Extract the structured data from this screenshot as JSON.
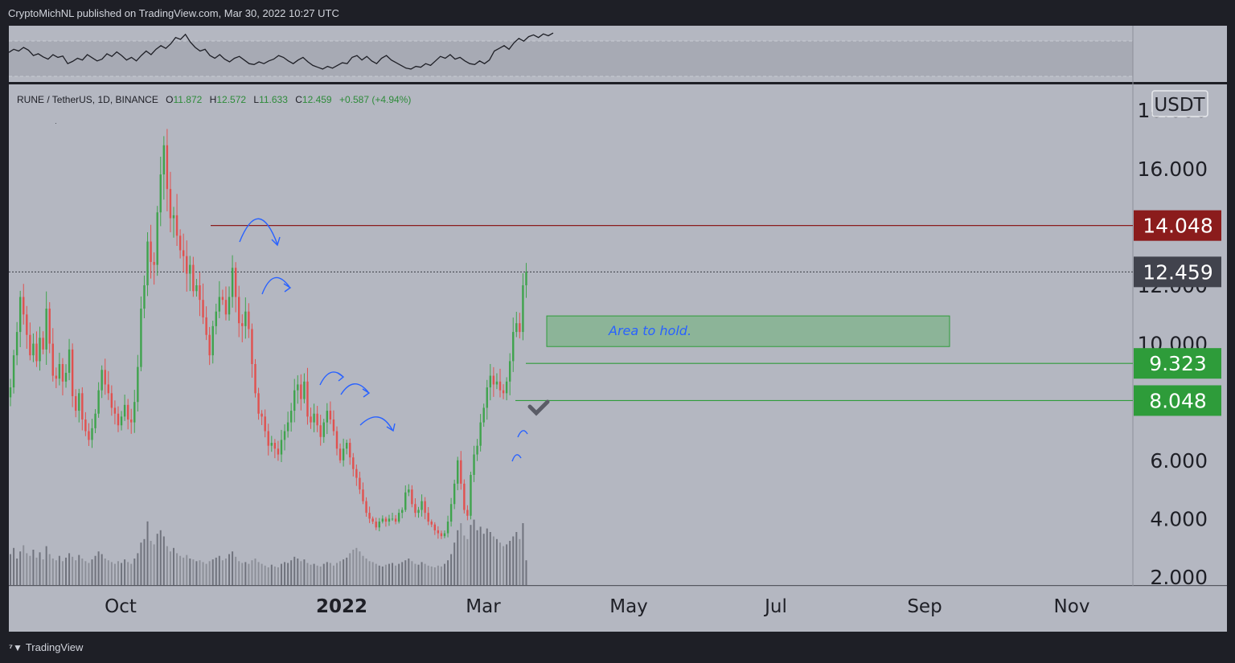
{
  "header": {
    "publisher": "CryptoMichNL published on TradingView.com, Mar 30, 2022 10:27 UTC"
  },
  "footer": {
    "brand": "TradingView"
  },
  "legend": {
    "symbol": "RUNE / TetherUS, 1D, BINANCE",
    "o_label": "O",
    "o": "11.872",
    "h_label": "H",
    "h": "12.572",
    "l_label": "L",
    "l": "11.633",
    "c_label": "C",
    "c": "12.459",
    "change": "+0.587 (+4.94%)"
  },
  "colors": {
    "up": "#3fa34d",
    "down": "#e0514f",
    "resistance": "#8b1c1c",
    "support": "#2e9c3a",
    "last": "#41434d",
    "zone": "#7fb38a",
    "annotation": "#2962ff"
  },
  "annotation_text": "Area to hold.",
  "currency": "USDT",
  "chart_data": {
    "type": "candlestick",
    "symbol": "RUNE / TetherUS",
    "interval": "1D",
    "exchange": "BINANCE",
    "ylim": [
      1.5,
      17.8
    ],
    "y_ticks": [
      {
        "value": 2,
        "label": "2.000"
      },
      {
        "value": 4,
        "label": "4.000"
      },
      {
        "value": 6,
        "label": "6.000"
      },
      {
        "value": 10,
        "label": "10.000"
      },
      {
        "value": 12,
        "label": "12.000"
      },
      {
        "value": 16,
        "label": "16.000"
      },
      {
        "value": 18,
        "label": "18.000"
      }
    ],
    "x_ticks": [
      {
        "label": "Oct",
        "bold": false
      },
      {
        "label": "2022",
        "bold": true
      },
      {
        "label": "Mar",
        "bold": false
      },
      {
        "label": "May",
        "bold": false
      },
      {
        "label": "Jul",
        "bold": false
      },
      {
        "label": "Sep",
        "bold": false
      },
      {
        "label": "Nov",
        "bold": false
      }
    ],
    "price_levels": [
      {
        "value": 14.048,
        "label": "14.048",
        "kind": "resistance"
      },
      {
        "value": 12.459,
        "label": "12.459",
        "kind": "last"
      },
      {
        "value": 9.323,
        "label": "9.323",
        "kind": "support"
      },
      {
        "value": 8.048,
        "label": "8.048",
        "kind": "support"
      }
    ],
    "zone": {
      "low": 9.9,
      "high": 10.95,
      "label": "Area to hold."
    },
    "closes": [
      8.5,
      9.6,
      10.4,
      11.6,
      11.0,
      10.3,
      9.6,
      10.0,
      9.4,
      10.2,
      9.8,
      11.2,
      10.0,
      8.9,
      8.8,
      9.3,
      8.7,
      9.0,
      9.8,
      8.2,
      7.7,
      8.3,
      7.4,
      7.0,
      6.7,
      7.1,
      7.6,
      8.4,
      9.1,
      8.6,
      8.3,
      7.8,
      7.6,
      7.2,
      7.5,
      7.9,
      7.4,
      7.3,
      8.0,
      9.2,
      11.2,
      12.0,
      13.5,
      12.8,
      12.7,
      14.5,
      15.8,
      16.8,
      15.3,
      14.3,
      14.4,
      13.7,
      13.2,
      13.0,
      12.4,
      12.7,
      11.8,
      12.0,
      11.5,
      10.9,
      10.3,
      9.6,
      10.6,
      11.1,
      11.6,
      11.5,
      11.0,
      11.6,
      12.6,
      11.6,
      10.7,
      10.6,
      11.1,
      10.5,
      9.3,
      8.3,
      7.6,
      7.5,
      7.0,
      6.5,
      6.6,
      6.4,
      6.2,
      6.7,
      7.0,
      7.3,
      7.7,
      8.4,
      8.6,
      8.1,
      8.7,
      7.5,
      7.3,
      7.6,
      7.2,
      6.8,
      7.3,
      7.7,
      7.4,
      7.0,
      6.4,
      6.0,
      6.4,
      6.6,
      6.1,
      5.7,
      5.4,
      5.0,
      4.6,
      4.2,
      4.0,
      3.9,
      3.7,
      3.9,
      4.0,
      3.9,
      4.0,
      4.0,
      3.9,
      4.2,
      4.3,
      4.9,
      5.0,
      4.5,
      4.2,
      4.3,
      4.6,
      4.2,
      3.9,
      3.8,
      3.6,
      3.5,
      3.4,
      3.5,
      3.9,
      4.5,
      5.2,
      6.0,
      5.2,
      4.3,
      4.1,
      5.5,
      6.2,
      6.5,
      7.3,
      7.8,
      8.5,
      8.9,
      8.6,
      8.7,
      8.4,
      8.3,
      8.7,
      9.4,
      10.4,
      10.7,
      10.4,
      12.0,
      12.459
    ],
    "volume_scale": "relative 0-1",
    "volume": [
      0.35,
      0.42,
      0.3,
      0.38,
      0.45,
      0.36,
      0.33,
      0.4,
      0.31,
      0.37,
      0.29,
      0.44,
      0.35,
      0.3,
      0.28,
      0.33,
      0.27,
      0.31,
      0.36,
      0.32,
      0.28,
      0.34,
      0.3,
      0.27,
      0.25,
      0.29,
      0.33,
      0.38,
      0.35,
      0.3,
      0.28,
      0.26,
      0.24,
      0.27,
      0.25,
      0.29,
      0.26,
      0.24,
      0.3,
      0.36,
      0.48,
      0.52,
      0.72,
      0.5,
      0.46,
      0.58,
      0.62,
      0.55,
      0.44,
      0.38,
      0.42,
      0.36,
      0.33,
      0.31,
      0.34,
      0.3,
      0.29,
      0.27,
      0.28,
      0.26,
      0.24,
      0.27,
      0.29,
      0.31,
      0.33,
      0.28,
      0.3,
      0.35,
      0.38,
      0.32,
      0.27,
      0.25,
      0.26,
      0.24,
      0.28,
      0.3,
      0.26,
      0.24,
      0.22,
      0.2,
      0.23,
      0.21,
      0.2,
      0.24,
      0.26,
      0.25,
      0.28,
      0.32,
      0.3,
      0.27,
      0.29,
      0.25,
      0.23,
      0.24,
      0.22,
      0.21,
      0.24,
      0.26,
      0.25,
      0.22,
      0.25,
      0.27,
      0.29,
      0.31,
      0.36,
      0.4,
      0.42,
      0.38,
      0.33,
      0.3,
      0.27,
      0.26,
      0.24,
      0.22,
      0.21,
      0.23,
      0.24,
      0.25,
      0.22,
      0.24,
      0.26,
      0.28,
      0.3,
      0.27,
      0.24,
      0.23,
      0.26,
      0.24,
      0.22,
      0.21,
      0.2,
      0.22,
      0.21,
      0.24,
      0.28,
      0.35,
      0.48,
      0.62,
      0.7,
      0.56,
      0.52,
      0.68,
      0.74,
      0.62,
      0.66,
      0.58,
      0.64,
      0.6,
      0.55,
      0.52,
      0.48,
      0.44,
      0.46,
      0.5,
      0.55,
      0.6,
      0.52,
      0.7,
      0.28
    ],
    "oscillator": [
      0.55,
      0.62,
      0.58,
      0.66,
      0.6,
      0.48,
      0.52,
      0.45,
      0.4,
      0.5,
      0.44,
      0.47,
      0.3,
      0.35,
      0.42,
      0.38,
      0.5,
      0.43,
      0.36,
      0.4,
      0.52,
      0.46,
      0.56,
      0.48,
      0.38,
      0.44,
      0.36,
      0.48,
      0.58,
      0.5,
      0.62,
      0.7,
      0.64,
      0.74,
      0.88,
      0.84,
      0.95,
      0.78,
      0.66,
      0.58,
      0.62,
      0.48,
      0.42,
      0.5,
      0.4,
      0.34,
      0.42,
      0.46,
      0.38,
      0.3,
      0.28,
      0.34,
      0.3,
      0.36,
      0.4,
      0.48,
      0.44,
      0.36,
      0.3,
      0.38,
      0.44,
      0.34,
      0.26,
      0.22,
      0.18,
      0.24,
      0.2,
      0.26,
      0.32,
      0.3,
      0.44,
      0.48,
      0.38,
      0.46,
      0.36,
      0.3,
      0.42,
      0.48,
      0.38,
      0.32,
      0.26,
      0.2,
      0.18,
      0.24,
      0.22,
      0.3,
      0.26,
      0.36,
      0.46,
      0.42,
      0.5,
      0.4,
      0.44,
      0.36,
      0.3,
      0.28,
      0.36,
      0.3,
      0.38,
      0.58,
      0.64,
      0.7,
      0.62,
      0.76,
      0.86,
      0.8,
      0.9,
      0.94,
      0.88,
      0.96,
      0.92,
      0.98
    ]
  }
}
